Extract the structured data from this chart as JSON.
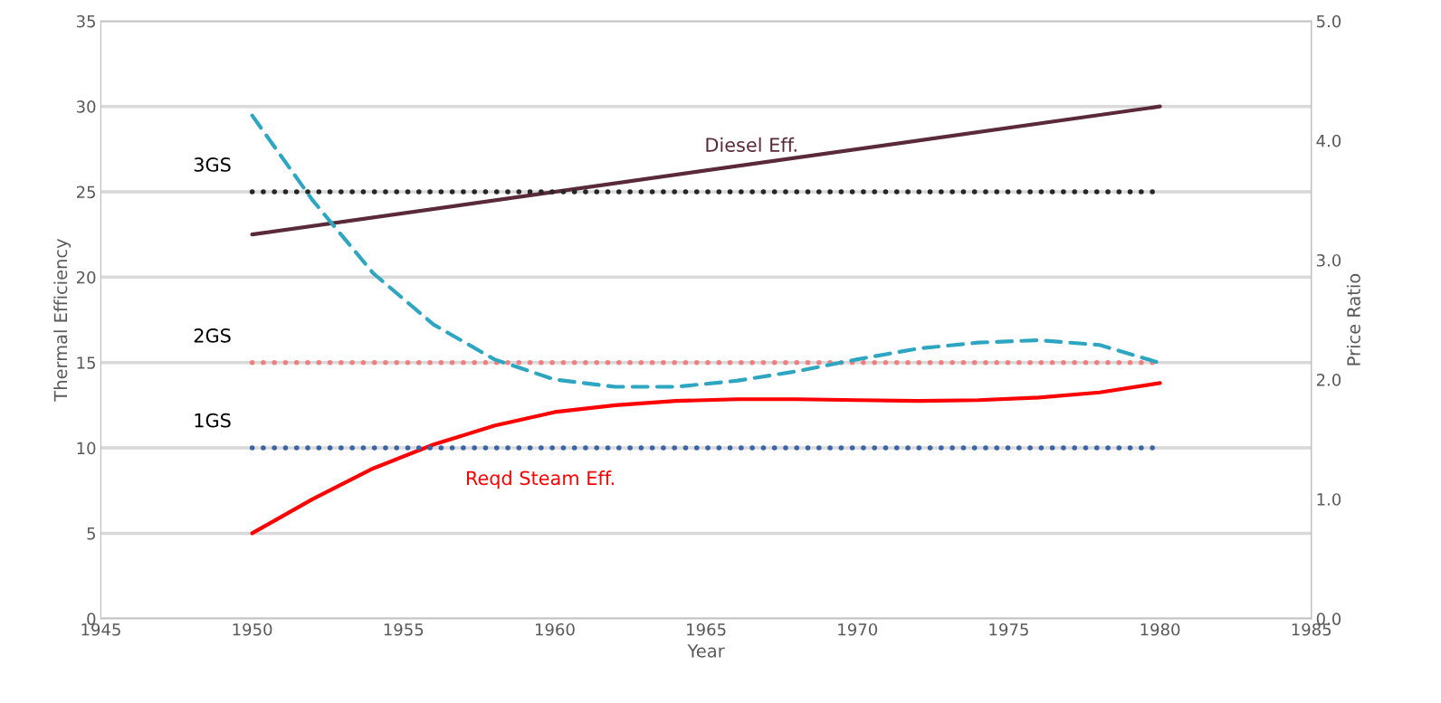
{
  "chart_data": {
    "type": "line",
    "xlabel": "Year",
    "ylabel": "Thermal Efficiency",
    "y2label": "Price Ratio",
    "xlim": [
      1945,
      1985
    ],
    "xticks": [
      1945,
      1950,
      1955,
      1960,
      1965,
      1970,
      1975,
      1980,
      1985
    ],
    "ylim": [
      0,
      35
    ],
    "yticks": [
      0,
      5,
      10,
      15,
      20,
      25,
      30,
      35
    ],
    "y2lim": [
      0,
      5
    ],
    "y2ticks": [
      {
        "value": 0,
        "label": "0.0"
      },
      {
        "value": 1,
        "label": "1.0"
      },
      {
        "value": 2,
        "label": "2.0"
      },
      {
        "value": 3,
        "label": "3.0"
      },
      {
        "value": 4,
        "label": "4.0"
      },
      {
        "value": 5,
        "label": "5.0"
      }
    ],
    "grid": "y",
    "legend": false,
    "marker": "none",
    "series": [
      {
        "name": "Diesel Eff.",
        "color": "#5b2a3a",
        "x": [
          1950,
          1980
        ],
        "values": [
          22.5,
          30
        ],
        "line_style": "solid"
      },
      {
        "name": "Reqd Steam Eff.",
        "color": "#ff0000",
        "x": [
          1950,
          1952,
          1954,
          1956,
          1958,
          1960,
          1962,
          1964,
          1966,
          1968,
          1970,
          1972,
          1974,
          1976,
          1978,
          1980
        ],
        "values": [
          5,
          7.0,
          8.8,
          10.2,
          11.3,
          12.1,
          12.5,
          12.75,
          12.85,
          12.85,
          12.8,
          12.75,
          12.8,
          12.95,
          13.25,
          13.8
        ],
        "line_style": "solid"
      },
      {
        "color": "#2ea6c1",
        "axis": "y2",
        "x": [
          1950,
          1952,
          1954,
          1956,
          1958,
          1960,
          1962,
          1964,
          1966,
          1968,
          1970,
          1972,
          1974,
          1976,
          1978,
          1980
        ],
        "values": [
          4.21,
          3.5,
          2.89,
          2.46,
          2.17,
          2.0,
          1.94,
          1.94,
          1.99,
          2.07,
          2.17,
          2.26,
          2.31,
          2.33,
          2.29,
          2.14
        ],
        "line_style": "dashed"
      },
      {
        "color": "#262626",
        "x": [
          1950,
          1980
        ],
        "values": [
          25,
          25
        ],
        "line_style": "dotted"
      },
      {
        "color": "#f08080",
        "x": [
          1950,
          1980
        ],
        "values": [
          15,
          15
        ],
        "line_style": "dotted"
      },
      {
        "color": "#3a63a8",
        "x": [
          1950,
          1980
        ],
        "values": [
          10,
          10
        ],
        "line_style": "dotted"
      }
    ],
    "annotations": [
      "3GS",
      "2GS",
      "1GS"
    ]
  }
}
